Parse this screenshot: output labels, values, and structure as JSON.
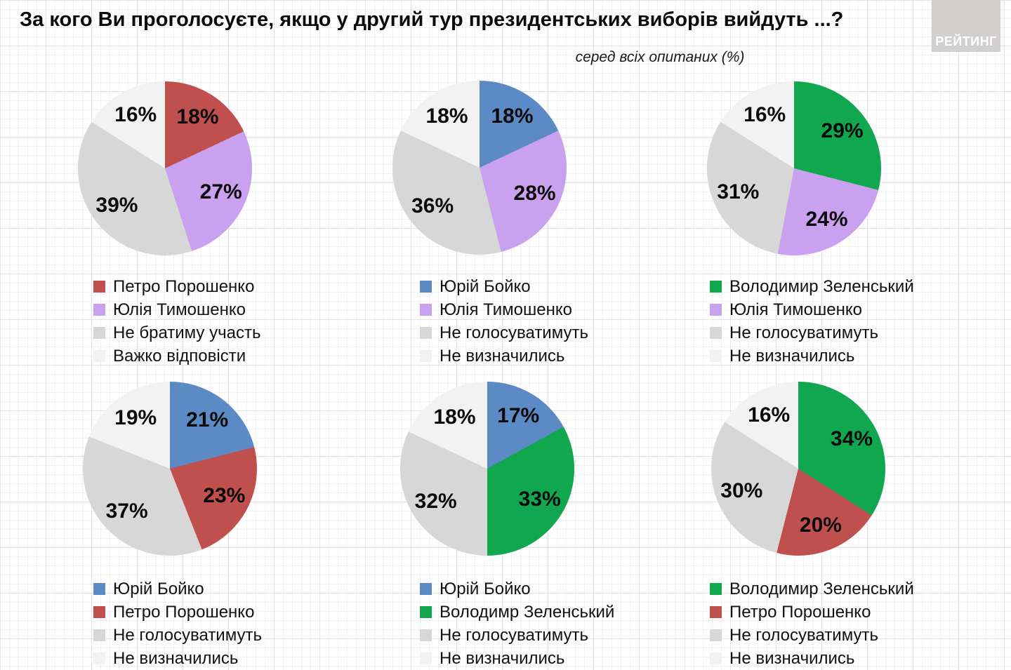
{
  "header": {
    "title": "За кого Ви проголосуєте, якщо у другий тур президентських виборів вийдуть ...?",
    "subtitle": "серед всіх опитаних (%)",
    "logo": "РЕЙТИНГ"
  },
  "colors": {
    "poroshenko_red": "#c0504d",
    "boyko_blue": "#5b8ac5",
    "zelensky_green": "#10a74f",
    "tymoshenko_purple": "#c9a1ef",
    "not_voting_gray": "#d8d7d7",
    "undecided_light": "#f3f2f2"
  },
  "chart_data": [
    {
      "type": "pie",
      "slices": [
        {
          "label": "Петро Порошенко",
          "value": 18,
          "color": "#c0504d"
        },
        {
          "label": "Юлія Тимошенко",
          "value": 27,
          "color": "#c9a1ef"
        },
        {
          "label": "Не братиму участь",
          "value": 39,
          "color": "#d8d7d7"
        },
        {
          "label": "Важко відповісти",
          "value": 16,
          "color": "#f3f2f2"
        }
      ]
    },
    {
      "type": "pie",
      "slices": [
        {
          "label": "Юрій Бойко",
          "value": 18,
          "color": "#5b8ac5"
        },
        {
          "label": "Юлія Тимошенко",
          "value": 28,
          "color": "#c9a1ef"
        },
        {
          "label": "Не голосуватимуть",
          "value": 36,
          "color": "#d8d7d7"
        },
        {
          "label": "Не визначились",
          "value": 18,
          "color": "#f3f2f2"
        }
      ]
    },
    {
      "type": "pie",
      "slices": [
        {
          "label": "Володимир Зеленський",
          "value": 29,
          "color": "#10a74f"
        },
        {
          "label": "Юлія Тимошенко",
          "value": 24,
          "color": "#c9a1ef"
        },
        {
          "label": "Не голосуватимуть",
          "value": 31,
          "color": "#d8d7d7"
        },
        {
          "label": "Не визначились",
          "value": 16,
          "color": "#f3f2f2"
        }
      ]
    },
    {
      "type": "pie",
      "slices": [
        {
          "label": "Юрій Бойко",
          "value": 21,
          "color": "#5b8ac5"
        },
        {
          "label": "Петро Порошенко",
          "value": 23,
          "color": "#c0504d"
        },
        {
          "label": "Не голосуватимуть",
          "value": 37,
          "color": "#d8d7d7"
        },
        {
          "label": "Не визначились",
          "value": 19,
          "color": "#f3f2f2"
        }
      ]
    },
    {
      "type": "pie",
      "slices": [
        {
          "label": "Юрій Бойко",
          "value": 17,
          "color": "#5b8ac5"
        },
        {
          "label": "Володимр Зеленський",
          "value": 33,
          "color": "#10a74f"
        },
        {
          "label": "Не голосуватимуть",
          "value": 32,
          "color": "#d8d7d7"
        },
        {
          "label": "Не визначились",
          "value": 18,
          "color": "#f3f2f2"
        }
      ]
    },
    {
      "type": "pie",
      "slices": [
        {
          "label": "Володимир Зеленський",
          "value": 34,
          "color": "#10a74f"
        },
        {
          "label": "Петро Порошенко",
          "value": 20,
          "color": "#c0504d"
        },
        {
          "label": "Не голосуватимуть",
          "value": 30,
          "color": "#d8d7d7"
        },
        {
          "label": "Не визначились",
          "value": 16,
          "color": "#f3f2f2"
        }
      ]
    }
  ]
}
